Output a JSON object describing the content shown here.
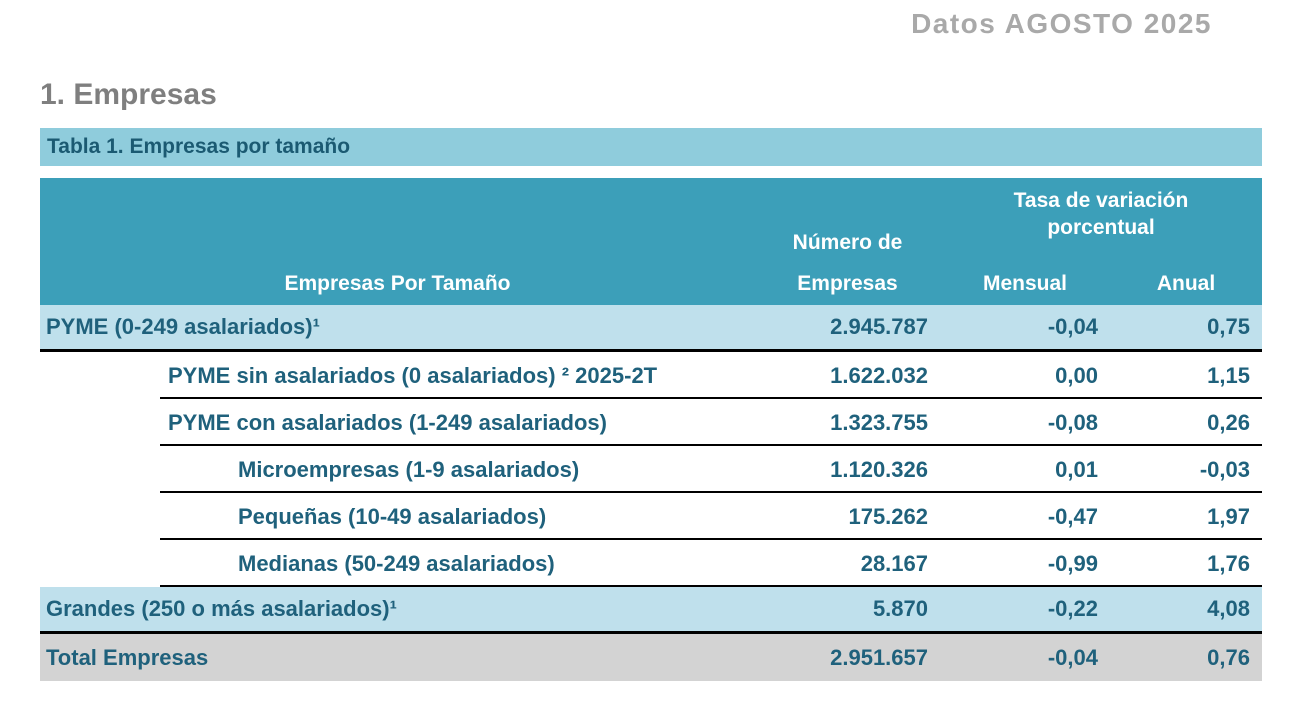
{
  "page": {
    "watermark": "Datos AGOSTO 2025",
    "section_title": "1. Empresas",
    "table_caption": "Tabla 1. Empresas por tamaño"
  },
  "colors": {
    "header_teal": "#3c9fb9",
    "caption_band_blue": "#8fccdc",
    "highlight_row_blue": "#bfe0ec",
    "total_row_gray": "#d3d3d3",
    "text_dark_teal": "#1f617c",
    "title_gray": "#7f7f7f",
    "watermark_gray": "#a9a9a9"
  },
  "table": {
    "header": {
      "col_label": "Empresas Por Tamaño",
      "col_num_line1": "Número de",
      "col_num_line2": "Empresas",
      "group_variation": "Tasa de variación porcentual",
      "col_monthly": "Mensual",
      "col_annual": "Anual"
    },
    "rows": [
      {
        "label": "PYME (0-249 asalariados)¹",
        "indent": 0,
        "style": "highlight",
        "num": "2.945.787",
        "monthly": "-0,04",
        "annual": "0,75"
      },
      {
        "label": "PYME sin asalariados (0 asalariados) ² 2025-2T",
        "indent": 1,
        "style": "plain",
        "num": "1.622.032",
        "monthly": "0,00",
        "annual": "1,15"
      },
      {
        "label": "PYME con asalariados (1-249 asalariados)",
        "indent": 1,
        "style": "plain",
        "num": "1.323.755",
        "monthly": "-0,08",
        "annual": "0,26"
      },
      {
        "label": "Microempresas (1-9 asalariados)",
        "indent": 2,
        "style": "plain",
        "num": "1.120.326",
        "monthly": "0,01",
        "annual": "-0,03"
      },
      {
        "label": "Pequeñas (10-49 asalariados)",
        "indent": 2,
        "style": "plain",
        "num": "175.262",
        "monthly": "-0,47",
        "annual": "1,97"
      },
      {
        "label": "Medianas (50-249 asalariados)",
        "indent": 2,
        "style": "plain",
        "num": "28.167",
        "monthly": "-0,99",
        "annual": "1,76"
      },
      {
        "label": "Grandes (250 o más asalariados)¹",
        "indent": 0,
        "style": "highlight",
        "num": "5.870",
        "monthly": "-0,22",
        "annual": "4,08"
      },
      {
        "label": "Total Empresas",
        "indent": 0,
        "style": "total",
        "num": "2.951.657",
        "monthly": "-0,04",
        "annual": "0,76"
      }
    ]
  }
}
